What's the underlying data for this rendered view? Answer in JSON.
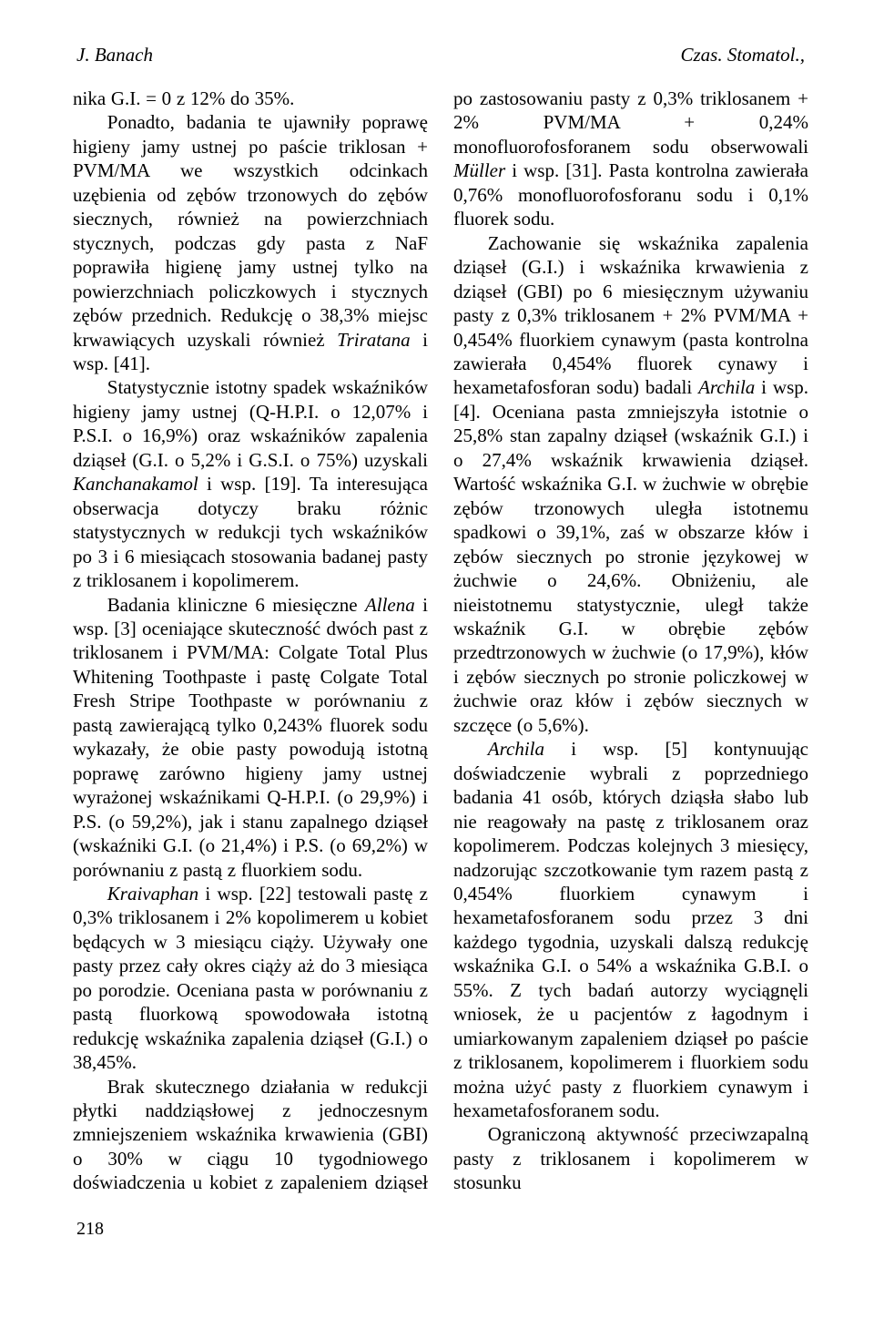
{
  "header": {
    "left": "J. Banach",
    "right": "Czas. Stomatol.,"
  },
  "body": {
    "p1a": "nika G.I. = 0 z 12% do 35%.",
    "p2": "Ponadto, badania te ujawniły poprawę higieny jamy ustnej po paście triklosan + PVM/MA we wszystkich odcinkach uzębienia od zębów trzonowych do zębów siecznych, również na powierzchniach stycznych, podczas gdy pasta z NaF poprawiła higienę jamy ustnej tylko na powierzchniach policzkowych i stycznych zębów przednich. Redukcję o 38,3% miejsc krwawiących uzyskali również ",
    "p2_it": "Triratana",
    "p2b": " i wsp. [41].",
    "p3": "Statystycznie istotny spadek wskaźników higieny jamy ustnej (Q-H.P.I. o 12,07% i P.S.I. o 16,9%) oraz wskaźników zapalenia dziąseł (G.I. o 5,2% i G.S.I. o 75%) uzyskali ",
    "p3_it": "Kanchanakamol",
    "p3b": " i wsp. [19]. Ta interesująca obserwacja dotyczy braku różnic statystycznych w redukcji tych wskaźników po 3 i 6 miesiącach stosowania badanej pasty z triklosanem i kopolimerem.",
    "p4a": "Badania kliniczne 6 miesięczne ",
    "p4_it": "Allena",
    "p4b": " i wsp. [3] oceniające skuteczność dwóch past z triklosanem i PVM/MA: Colgate Total Plus Whitening Toothpaste i pastę Colgate Total Fresh Stripe Toothpaste w porównaniu z pastą zawierającą tylko 0,243% fluorek sodu wykazały, że obie pasty powodują istotną poprawę zarówno higieny jamy ustnej wyrażonej wskaźnikami Q-H.P.I. (o 29,9%) i P.S. (o 59,2%), jak i stanu zapalnego dziąseł (wskaźniki G.I. (o 21,4%) i P.S. (o 69,2%) w porównaniu z pastą z fluorkiem sodu.",
    "p5_it": "Kraivaphan",
    "p5": " i wsp. [22] testowali pastę z 0,3% triklosanem i 2% kopolimerem u kobiet będących w 3 miesiącu ciąży. Używały one pasty przez cały okres ciąży aż do 3 miesiąca po porodzie. Oceniana pasta w porównaniu z pastą fluorkową spowodowała istotną redukcję wskaźnika zapalenia dziąseł (G.I.) o 38,45%.",
    "p6a": "Brak skutecznego działania w redukcji płytki naddziąsłowej z jednoczesnym zmniejszeniem wskaźnika krwawienia (GBI) o 30% w ciągu 10 tygodniowego doświadczenia u ko",
    "p6b": "biet z zapaleniem dziąseł po zastosowaniu pasty z 0,3% triklosanem + 2% PVM/MA + 0,24% monofluorofosforanem sodu obserwowali ",
    "p6_it": "Müller",
    "p6c": " i wsp. [31]. Pasta kontrolna zawierała 0,76% monofluorofosforanu sodu i 0,1% fluorek sodu.",
    "p7a": "Zachowanie się wskaźnika zapalenia dziąseł (G.I.) i wskaźnika krwawienia z dziąseł (GBI) po 6 miesięcznym używaniu pasty z 0,3% triklosanem + 2% PVM/MA + 0,454% fluorkiem cynawym (pasta kontrolna zawierała 0,454% fluorek cynawy i hexametafosforan sodu) badali ",
    "p7_it": "Archila",
    "p7b": " i wsp. [4]. Oceniana pasta zmniejszyła istotnie o 25,8% stan zapalny dziąseł (wskaźnik G.I.) i o 27,4% wskaźnik krwawienia dziąseł. Wartość wskaźnika G.I. w żuchwie w obrębie zębów trzonowych uległa istotnemu spadkowi o 39,1%, zaś w obszarze kłów i zębów siecznych po stronie językowej w żuchwie o 24,6%. Obniżeniu, ale nieistotnemu statystycznie, uległ także wskaźnik G.I. w obrębie zębów przedtrzonowych w żuchwie (o 17,9%), kłów i zębów siecznych po stronie policzkowej w żuchwie oraz kłów i zębów siecznych w szczęce (o 5,6%).",
    "p8_it": "Archila",
    "p8": " i wsp. [5] kontynuując doświadczenie wybrali z poprzedniego badania 41 osób, których dziąsła słabo lub nie reagowały na pastę z triklosanem oraz kopolimerem. Podczas kolejnych 3 miesięcy, nadzorując szczotkowanie tym razem pastą z 0,454% fluorkiem cynawym i hexametafosforanem sodu przez 3 dni każdego tygodnia, uzyskali dalszą redukcję wskaźnika G.I. o 54% a wskaźnika G.B.I. o 55%. Z tych badań autorzy wyciągnęli wniosek, że u pacjentów z łagodnym i umiarkowanym zapaleniem dziąseł po paście z triklosanem, kopolimerem i fluorkiem sodu można użyć pasty z fluorkiem cynawym i hexametafosforanem sodu.",
    "p9": "Ograniczoną aktywność przeciwzapalną pasty z triklosanem i kopolimerem w stosunku"
  },
  "pagenum": "218"
}
